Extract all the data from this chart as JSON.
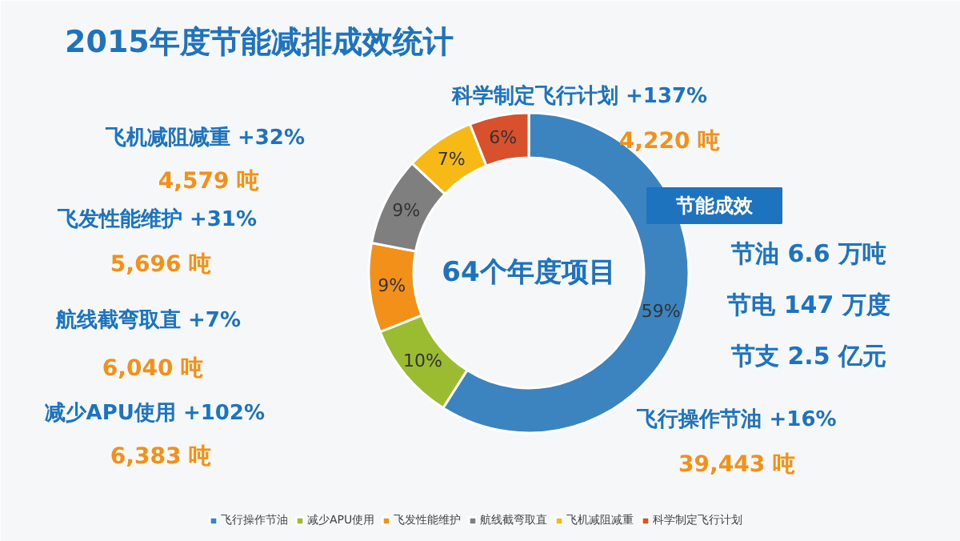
{
  "chart_data": {
    "type": "donut",
    "title": "2015年度节能减排成效统计",
    "categories": [
      "飞行操作节油",
      "减少APU使用",
      "飞发性能维护",
      "航线截弯取直",
      "飞机减阻减重",
      "科学制定飞行计划"
    ],
    "values": [
      59,
      10,
      9,
      9,
      7,
      6
    ],
    "colors": [
      "#3b84bf",
      "#9bbb30",
      "#f39019",
      "#7f7f7f",
      "#f6b915",
      "#d9512c"
    ],
    "value_labels": [
      "59%",
      "10%",
      "9%",
      "9%",
      "7%",
      "6%"
    ],
    "legend": "bottom",
    "annotations": [
      "飞机减阻减重 +32%",
      "4,579 吨",
      "飞发性能维护 +31%",
      "5,696 吨",
      "航线截弯取直 +7%",
      "6,040 吨",
      "减少APU使用 +102%",
      "6,383 吨",
      "科学制定飞行计划 +137%",
      "4,220 吨",
      "节能成效",
      "节油 6.6 万吨",
      "节电 147 万度",
      "节支 2.5 亿元",
      "飞行操作节油 +16%",
      "39,443 吨",
      "64个年度项目"
    ]
  }
}
